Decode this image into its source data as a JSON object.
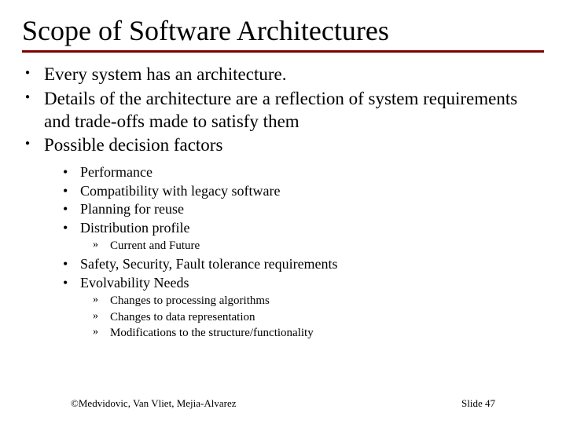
{
  "title": "Scope of Software Architectures",
  "b1": "Every system has an architecture.",
  "b2": "Details of the architecture are a reflection of system requirements and trade-offs made to satisfy them",
  "b3": "Possible decision factors",
  "s1": "Performance",
  "s2": "Compatibility with legacy software",
  "s3": "Planning for reuse",
  "s4": "Distribution profile",
  "s4a": "Current and Future",
  "s5": "Safety, Security, Fault tolerance requirements",
  "s6": "Evolvability Needs",
  "s6a": "Changes to processing algorithms",
  "s6b": "Changes to data representation",
  "s6c": "Modifications to the structure/functionality",
  "footer_left": "©Medvidovic, Van Vliet, Mejia-Alvarez",
  "footer_right": "Slide 47"
}
